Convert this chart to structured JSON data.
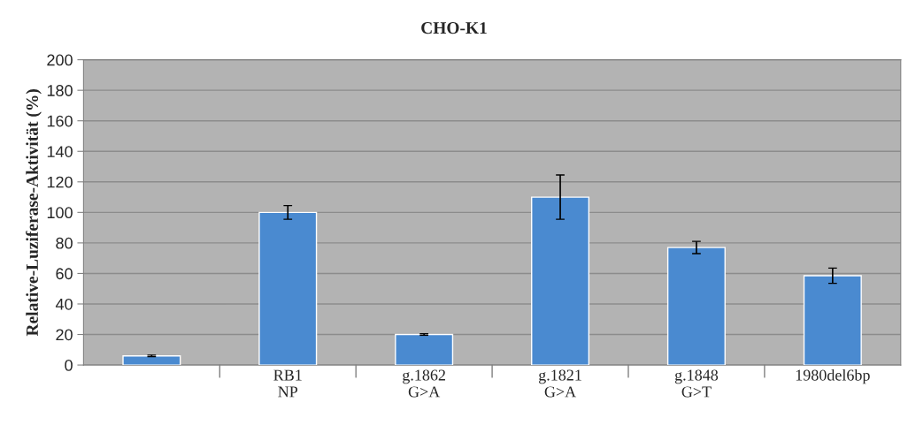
{
  "chart_data": {
    "type": "bar",
    "title": "CHO-K1",
    "ylabel": "Relative-Luziferase-Aktivität (%)",
    "categories": [
      null,
      "RB1\nNP",
      "g.1862\nG>A",
      "g.1821\nG>A",
      "g.1848\nG>T",
      "1980del6bp"
    ],
    "values": [
      6,
      100,
      20,
      110,
      77,
      58.5
    ],
    "errors": [
      0.5,
      4.5,
      0.5,
      14.5,
      4,
      5
    ],
    "color": "#4a8ad0",
    "ylim": [
      0,
      200
    ],
    "yticks": [
      0,
      20,
      40,
      60,
      80,
      100,
      120,
      140,
      160,
      180,
      200
    ],
    "grid": "y",
    "legend": false
  }
}
